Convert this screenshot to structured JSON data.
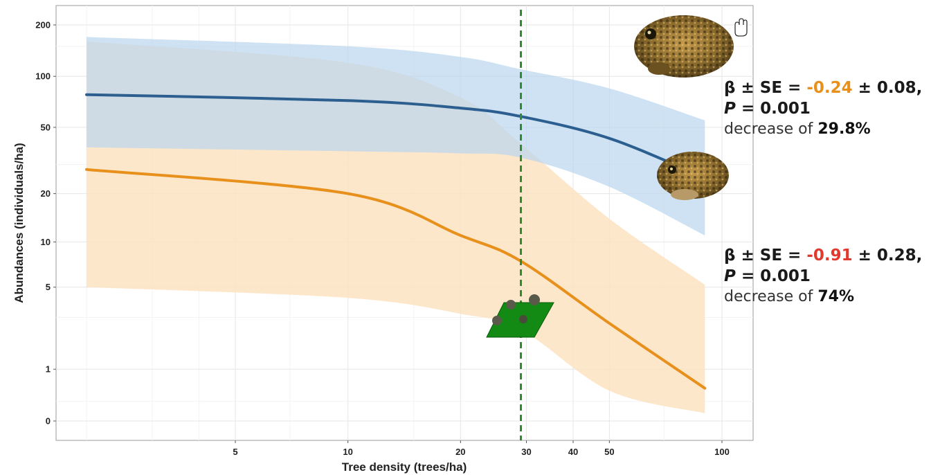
{
  "chart_data": {
    "type": "line",
    "xlabel": "Tree density (trees/ha)",
    "ylabel": "Abundances (individuals/ha)",
    "x_scale": "log",
    "y_scale": "log",
    "x_ticks": [
      5,
      10,
      20,
      30,
      40,
      50,
      100
    ],
    "y_ticks": [
      0,
      1,
      5,
      10,
      20,
      50,
      100,
      200
    ],
    "grid": true,
    "reference_line": {
      "x": 29,
      "style": "dashed",
      "color": "#2e8b2e"
    },
    "series": [
      {
        "color": "#2c5f8f",
        "band_color": "#b9d6ee",
        "x": [
          2,
          10,
          20,
          29,
          50,
          90
        ],
        "y": [
          78,
          72,
          65,
          58,
          43,
          25
        ],
        "lower": [
          38,
          36,
          35,
          33,
          22,
          11
        ],
        "upper": [
          170,
          150,
          130,
          110,
          85,
          55
        ],
        "annotation": {
          "prefix": "β ± SE = ",
          "beta": "-0.24",
          "beta_color": "#e8901c",
          "suffix": " ± 0.08,",
          "p_label": "P",
          "p_value": " = 0.001",
          "decrease_text": "decrease of ",
          "decrease_value": "29.8%"
        }
      },
      {
        "color": "#e8901c",
        "band_color": "#fde3c2",
        "x": [
          2,
          10,
          20,
          29,
          50,
          90
        ],
        "y": [
          28,
          20,
          11,
          7.5,
          2.7,
          0.55
        ],
        "lower": [
          5,
          4.2,
          3.2,
          2.4,
          0.5,
          0.11
        ],
        "upper": [
          160,
          120,
          75,
          40,
          14,
          5.2
        ],
        "annotation": {
          "prefix": "β ± SE = ",
          "beta": "-0.91",
          "beta_color": "#e03a2f",
          "suffix": " ± 0.28,",
          "p_label": "P",
          "p_value": " = 0.001",
          "decrease_text": "decrease of ",
          "decrease_value": "74%"
        }
      }
    ]
  },
  "icons": [
    "toad-large-icon",
    "toad-small-icon",
    "forest-plot-icon",
    "hand-cursor-icon"
  ]
}
